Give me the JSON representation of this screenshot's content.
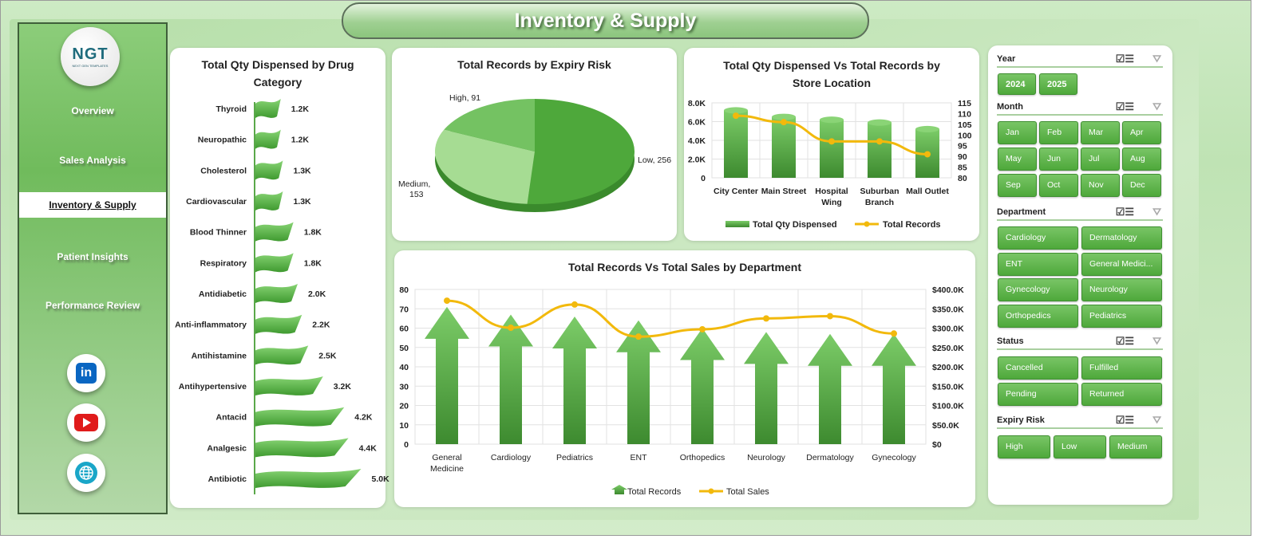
{
  "title": "Inventory & Supply",
  "logo": {
    "text": "NGT",
    "sub": "NEXT GEN TEMPLATES"
  },
  "nav": [
    {
      "label": "Overview"
    },
    {
      "label": "Sales Analysis"
    },
    {
      "label": "Inventory & Supply",
      "selected": true
    },
    {
      "label": "Patient Insights"
    },
    {
      "label": "Performance Review"
    }
  ],
  "social": [
    {
      "icon": "linkedin-icon",
      "label": "in"
    },
    {
      "icon": "youtube-icon"
    },
    {
      "icon": "globe-icon"
    }
  ],
  "colors": {
    "green": "#4fa83c",
    "gold": "#f2b90c",
    "bg": "#c6e6bb"
  },
  "chart_data": [
    {
      "type": "bar",
      "title": "Total Qty Dispensed by Drug Category",
      "orientation": "horizontal",
      "categories": [
        "Thyroid",
        "Neuropathic",
        "Cholesterol",
        "Cardiovascular",
        "Blood Thinner",
        "Respiratory",
        "Antidiabetic",
        "Anti-inflammatory",
        "Antihistamine",
        "Antihypertensive",
        "Antacid",
        "Analgesic",
        "Antibiotic"
      ],
      "values": [
        1200,
        1200,
        1300,
        1300,
        1800,
        1800,
        2000,
        2200,
        2500,
        3200,
        4200,
        4400,
        5000
      ],
      "data_labels": [
        "1.2K",
        "1.2K",
        "1.3K",
        "1.3K",
        "1.8K",
        "1.8K",
        "2.0K",
        "2.2K",
        "2.5K",
        "3.2K",
        "4.2K",
        "4.4K",
        "5.0K"
      ]
    },
    {
      "type": "pie",
      "title": "Total Records by Expiry Risk",
      "slices": [
        {
          "label": "Low",
          "value": 256,
          "text": "Low, 256",
          "color": "#4ea83b"
        },
        {
          "label": "Medium",
          "value": 153,
          "text": "Medium, 153",
          "color": "#a6dc93"
        },
        {
          "label": "High",
          "value": 91,
          "text": "High, 91",
          "color": "#74c262"
        }
      ]
    },
    {
      "type": "bar+line",
      "title": "Total Qty Dispensed Vs Total Records by Store Location",
      "categories": [
        "City Center",
        "Main Street",
        "Hospital Wing",
        "Suburban Branch",
        "Mall Outlet"
      ],
      "series": [
        {
          "name": "Total Qty Dispensed",
          "axis": "left",
          "values": [
            7200,
            6500,
            6200,
            5900,
            5200
          ]
        },
        {
          "name": "Total Records",
          "axis": "right",
          "values": [
            109,
            106,
            97,
            97,
            91
          ]
        }
      ],
      "ylim": [
        0,
        8000
      ],
      "yticks": [
        "0",
        "2.0K",
        "4.0K",
        "6.0K",
        "8.0K"
      ],
      "y2lim": [
        80,
        115
      ],
      "y2ticks": [
        "80",
        "85",
        "90",
        "95",
        "100",
        "105",
        "110",
        "115"
      ],
      "grid": true,
      "legend": "bottom"
    },
    {
      "type": "bar+line",
      "title": "Total Records Vs Total Sales by Department",
      "categories": [
        "General Medicine",
        "Cardiology",
        "Pediatrics",
        "ENT",
        "Orthopedics",
        "Neurology",
        "Dermatology",
        "Gynecology"
      ],
      "series": [
        {
          "name": "Total Records",
          "axis": "left",
          "values": [
            71,
            67,
            66,
            64,
            60,
            58,
            57,
            57
          ]
        },
        {
          "name": "Total Sales",
          "axis": "right",
          "values": [
            371000,
            301000,
            361000,
            278000,
            297000,
            325000,
            331000,
            286000
          ]
        }
      ],
      "ylim": [
        0,
        80
      ],
      "yticks": [
        "0",
        "10",
        "20",
        "30",
        "40",
        "50",
        "60",
        "70",
        "80"
      ],
      "y2lim": [
        0,
        400000
      ],
      "y2ticks": [
        "$0",
        "$50.0K",
        "$100.0K",
        "$150.0K",
        "$200.0K",
        "$250.0K",
        "$300.0K",
        "$350.0K",
        "$400.0K"
      ],
      "grid": true,
      "legend": "bottom"
    }
  ],
  "slicers": [
    {
      "title": "Year",
      "items": [
        "2024",
        "2025"
      ]
    },
    {
      "title": "Month",
      "items": [
        "Jan",
        "Feb",
        "Mar",
        "Apr",
        "May",
        "Jun",
        "Jul",
        "Aug",
        "Sep",
        "Oct",
        "Nov",
        "Dec"
      ]
    },
    {
      "title": "Department",
      "items": [
        "Cardiology",
        "Dermatology",
        "ENT",
        "General Medici...",
        "Gynecology",
        "Neurology",
        "Orthopedics",
        "Pediatrics"
      ]
    },
    {
      "title": "Status",
      "items": [
        "Cancelled",
        "Fulfilled",
        "Pending",
        "Returned"
      ]
    },
    {
      "title": "Expiry Risk",
      "items": [
        "High",
        "Low",
        "Medium"
      ]
    }
  ]
}
